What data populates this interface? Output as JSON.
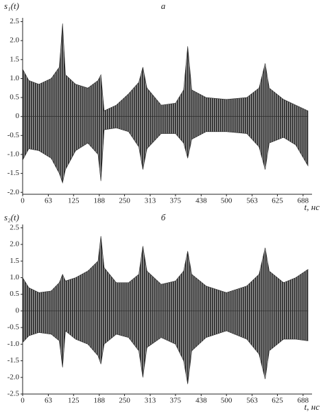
{
  "chart_data": [
    {
      "type": "area",
      "title": "а",
      "y_label": "s₁(t)",
      "x_label": "t, нс",
      "x": [
        0,
        15,
        40,
        70,
        90,
        98,
        105,
        130,
        160,
        185,
        192,
        200,
        230,
        260,
        285,
        295,
        305,
        340,
        375,
        395,
        405,
        415,
        450,
        500,
        550,
        580,
        595,
        605,
        640,
        670,
        700
      ],
      "series": [
        {
          "color": "#2a2a2a",
          "values": [
            1.25,
            0.95,
            0.85,
            1.0,
            1.3,
            2.45,
            1.1,
            0.85,
            0.75,
            0.95,
            1.1,
            0.15,
            0.3,
            0.6,
            0.9,
            1.3,
            0.75,
            0.3,
            0.35,
            0.7,
            1.85,
            0.7,
            0.5,
            0.45,
            0.5,
            0.75,
            1.4,
            0.75,
            0.45,
            0.3,
            0.15
          ]
        },
        {
          "color": "#2a2a2a",
          "values": [
            -1.15,
            -0.85,
            -0.9,
            -1.1,
            -1.5,
            -1.75,
            -1.4,
            -0.9,
            -0.7,
            -1.0,
            -1.7,
            -0.35,
            -0.3,
            -0.4,
            -0.8,
            -1.4,
            -0.85,
            -0.45,
            -0.45,
            -0.7,
            -1.1,
            -0.6,
            -0.4,
            -0.4,
            -0.45,
            -0.8,
            -1.4,
            -0.7,
            -0.55,
            -0.75,
            -1.3
          ]
        }
      ],
      "xlim": [
        0,
        710
      ],
      "xticks": [
        0,
        63,
        125,
        188,
        250,
        313,
        375,
        438,
        500,
        563,
        625,
        688
      ],
      "ylim": [
        -2.05,
        2.6
      ],
      "yticks": [
        2.5,
        {
          "value": 2,
          "label": "2.0"
        },
        1.5,
        {
          "value": 1,
          "label": "1.0"
        },
        0.5,
        0,
        -0.5,
        {
          "value": -1,
          "label": "-1.0"
        },
        -1.5,
        {
          "value": -2,
          "label": "-2.0"
        }
      ]
    },
    {
      "type": "area",
      "title": "б",
      "y_label": "s₂(t)",
      "x_label": "t, нс",
      "x": [
        0,
        15,
        40,
        70,
        90,
        98,
        105,
        130,
        160,
        185,
        192,
        200,
        230,
        260,
        285,
        295,
        305,
        340,
        375,
        395,
        405,
        415,
        450,
        500,
        550,
        580,
        595,
        605,
        640,
        670,
        700
      ],
      "series": [
        {
          "color": "#2a2a2a",
          "values": [
            1.0,
            0.7,
            0.55,
            0.6,
            0.85,
            1.1,
            0.9,
            1.0,
            1.2,
            1.5,
            2.25,
            1.3,
            0.85,
            0.85,
            1.1,
            1.95,
            1.2,
            0.8,
            0.9,
            1.2,
            1.8,
            1.1,
            0.75,
            0.55,
            0.75,
            1.1,
            1.9,
            1.2,
            0.85,
            1.0,
            1.25
          ]
        },
        {
          "color": "#2a2a2a",
          "values": [
            -0.95,
            -0.75,
            -0.65,
            -0.7,
            -0.9,
            -1.7,
            -0.6,
            -0.85,
            -1.0,
            -1.35,
            -1.6,
            -1.0,
            -0.7,
            -0.8,
            -1.2,
            -2.0,
            -1.1,
            -0.8,
            -1.0,
            -1.5,
            -2.2,
            -1.2,
            -0.8,
            -0.6,
            -0.85,
            -1.3,
            -2.05,
            -1.2,
            -0.85,
            -0.85,
            -0.9
          ]
        }
      ],
      "xlim": [
        0,
        710
      ],
      "xticks": [
        0,
        63,
        125,
        188,
        250,
        313,
        375,
        438,
        500,
        563,
        625,
        688
      ],
      "ylim": [
        -2.5,
        2.6
      ],
      "yticks": [
        2.5,
        {
          "value": 2,
          "label": "2.0"
        },
        1.5,
        {
          "value": 1,
          "label": "1.0"
        },
        0.5,
        0,
        -0.5,
        {
          "value": -1,
          "label": "-1.0"
        },
        -1.5,
        {
          "value": -2,
          "label": "-2.0"
        },
        -2.5
      ]
    }
  ]
}
